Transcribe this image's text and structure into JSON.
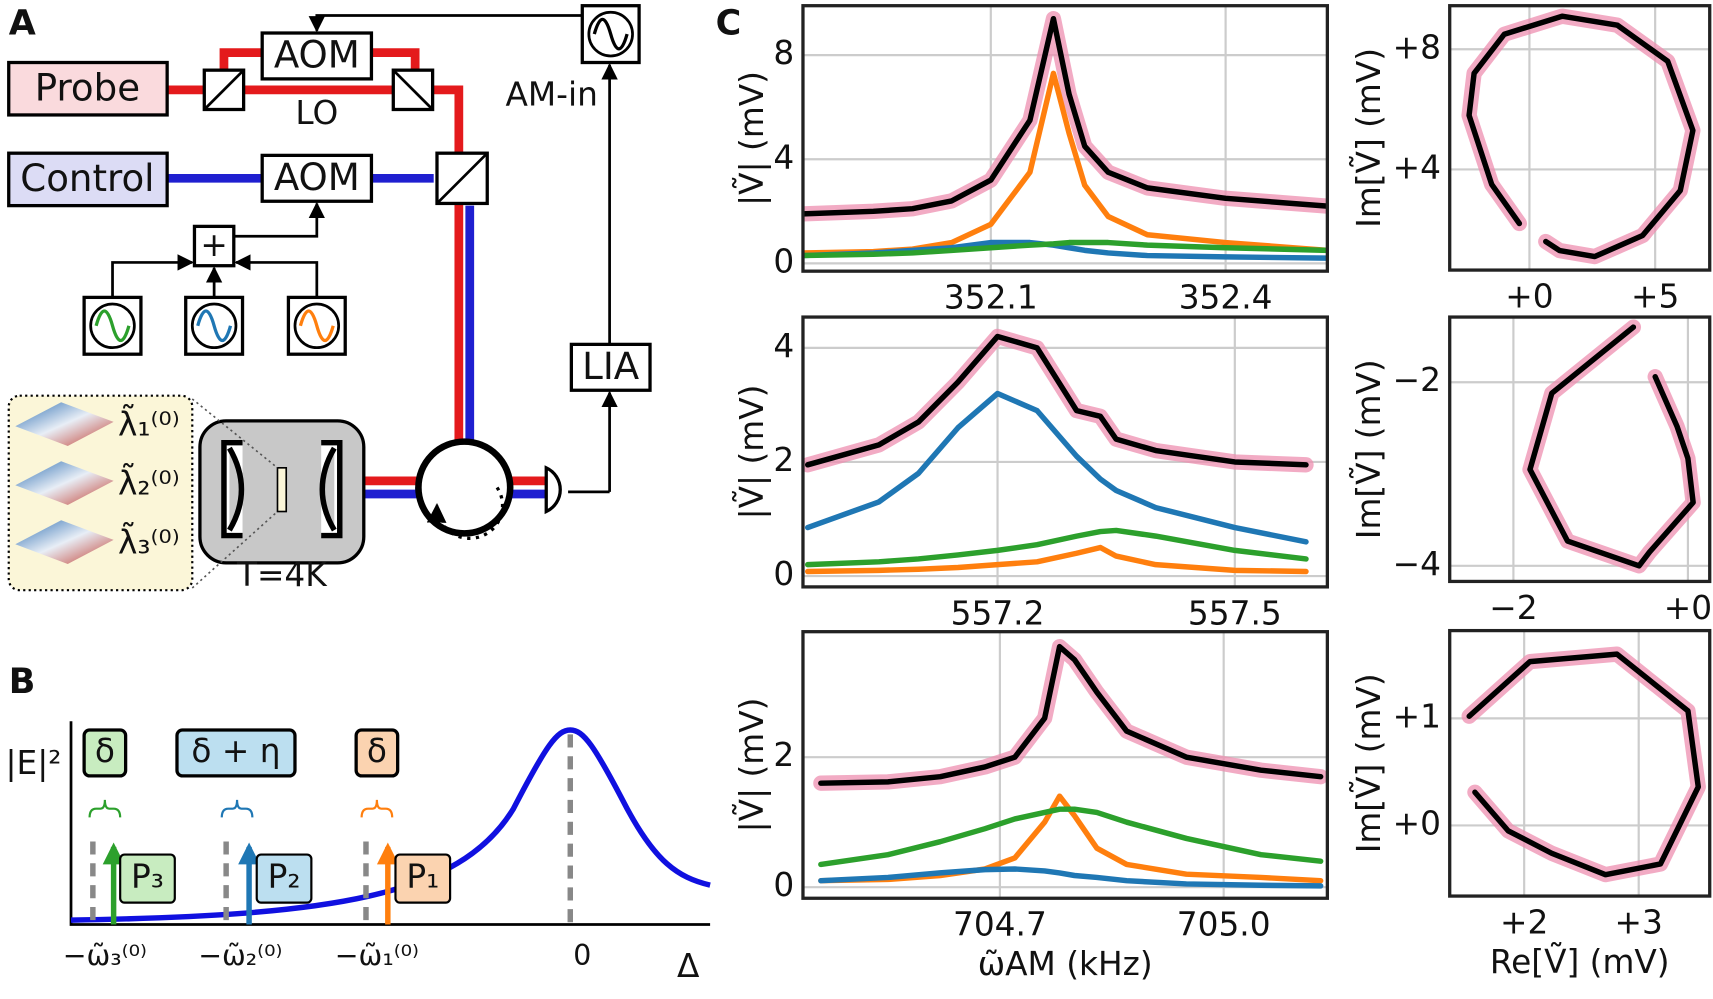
{
  "panel_a": {
    "label": "A",
    "probe": "Probe",
    "control": "Control",
    "aom_top": "AOM",
    "aom_bottom": "AOM",
    "lo": "LO",
    "am_in": "AM-in",
    "plus": "+",
    "lia": "LIA",
    "temperature": "T=4K",
    "modes": [
      "λ̃₁⁽⁰⁾",
      "λ̃₂⁽⁰⁾",
      "λ̃₃⁽⁰⁾"
    ]
  },
  "panel_b": {
    "label": "B",
    "ylabel": "|E|²",
    "xlabel": "Δ",
    "detunings": [
      "δ",
      "δ + η",
      "δ"
    ],
    "powers": [
      "P₃",
      "P₂",
      "P₁"
    ],
    "xtick_labels": [
      "−ω̃₃⁽⁰⁾",
      "−ω̃₂⁽⁰⁾",
      "−ω̃₁⁽⁰⁾",
      "0"
    ]
  },
  "panel_c": {
    "label": "C"
  },
  "chart_data": [
    {
      "type": "line",
      "ylabel": "|Ṽ| (mV)",
      "grid": true,
      "x": [
        351.86,
        351.95,
        352.0,
        352.05,
        352.1,
        352.15,
        352.18,
        352.2,
        352.22,
        352.25,
        352.3,
        352.4,
        352.53
      ],
      "series": [
        {
          "color": "#ee8fb0",
          "values": [
            1.9,
            2.0,
            2.1,
            2.4,
            3.2,
            5.5,
            9.4,
            6.5,
            4.5,
            3.5,
            2.9,
            2.5,
            2.2
          ]
        },
        {
          "color": "#ff7f0e",
          "values": [
            0.4,
            0.45,
            0.55,
            0.8,
            1.5,
            3.5,
            7.3,
            5.0,
            3.0,
            1.8,
            1.1,
            0.8,
            0.5
          ]
        },
        {
          "color": "#1f77b4",
          "values": [
            0.3,
            0.4,
            0.5,
            0.6,
            0.8,
            0.8,
            0.7,
            0.6,
            0.5,
            0.4,
            0.3,
            0.25,
            0.2
          ]
        },
        {
          "color": "#2ca02c",
          "values": [
            0.3,
            0.35,
            0.4,
            0.5,
            0.6,
            0.7,
            0.75,
            0.8,
            0.8,
            0.8,
            0.7,
            0.6,
            0.5
          ]
        },
        {
          "color": "#000000",
          "values": [
            1.9,
            2.0,
            2.1,
            2.4,
            3.2,
            5.5,
            9.4,
            6.5,
            4.5,
            3.5,
            2.9,
            2.5,
            2.2
          ]
        }
      ],
      "xlim": [
        351.86,
        352.53
      ],
      "ylim": [
        -0.3,
        9.9
      ],
      "xticks": [
        352.1,
        352.4
      ],
      "yticks": [
        0,
        4,
        8
      ]
    },
    {
      "type": "line",
      "ylabel": "|Ṽ| (mV)",
      "grid": true,
      "x": [
        556.96,
        557.05,
        557.1,
        557.15,
        557.2,
        557.25,
        557.3,
        557.33,
        557.35,
        557.4,
        557.5,
        557.59
      ],
      "series": [
        {
          "color": "#ee8fb0",
          "values": [
            1.95,
            2.3,
            2.7,
            3.4,
            4.2,
            4.0,
            2.9,
            2.8,
            2.4,
            2.2,
            2.0,
            1.95
          ]
        },
        {
          "color": "#1f77b4",
          "values": [
            0.85,
            1.3,
            1.8,
            2.6,
            3.2,
            2.9,
            2.1,
            1.7,
            1.5,
            1.2,
            0.85,
            0.6
          ]
        },
        {
          "color": "#2ca02c",
          "values": [
            0.2,
            0.25,
            0.3,
            0.37,
            0.45,
            0.55,
            0.7,
            0.78,
            0.8,
            0.7,
            0.45,
            0.3
          ]
        },
        {
          "color": "#ff7f0e",
          "values": [
            0.08,
            0.1,
            0.12,
            0.15,
            0.2,
            0.25,
            0.4,
            0.5,
            0.35,
            0.2,
            0.1,
            0.08
          ]
        },
        {
          "color": "#000000",
          "values": [
            1.95,
            2.3,
            2.7,
            3.4,
            4.2,
            4.0,
            2.9,
            2.8,
            2.4,
            2.2,
            2.0,
            1.95
          ]
        }
      ],
      "xlim": [
        556.954,
        557.617
      ],
      "ylim": [
        -0.19,
        4.54
      ],
      "xticks": [
        557.2,
        557.5
      ],
      "yticks": [
        0,
        2,
        4
      ]
    },
    {
      "type": "line",
      "ylabel": "|Ṽ| (mV)",
      "xlabel": "ω̃AM (kHz)",
      "grid": true,
      "x": [
        704.46,
        704.55,
        704.62,
        704.68,
        704.72,
        704.76,
        704.78,
        704.8,
        704.83,
        704.87,
        704.95,
        705.05,
        705.13
      ],
      "series": [
        {
          "color": "#ee8fb0",
          "values": [
            1.6,
            1.62,
            1.7,
            1.85,
            2.0,
            2.6,
            3.7,
            3.5,
            3.0,
            2.4,
            2.0,
            1.8,
            1.7
          ]
        },
        {
          "color": "#ff7f0e",
          "values": [
            0.1,
            0.12,
            0.18,
            0.28,
            0.45,
            1.0,
            1.4,
            1.1,
            0.6,
            0.35,
            0.2,
            0.15,
            0.1
          ]
        },
        {
          "color": "#2ca02c",
          "values": [
            0.35,
            0.5,
            0.7,
            0.9,
            1.05,
            1.15,
            1.2,
            1.2,
            1.15,
            1.0,
            0.75,
            0.5,
            0.4
          ]
        },
        {
          "color": "#1f77b4",
          "values": [
            0.1,
            0.15,
            0.22,
            0.27,
            0.28,
            0.25,
            0.22,
            0.18,
            0.15,
            0.1,
            0.05,
            0.03,
            0.02
          ]
        },
        {
          "color": "#000000",
          "values": [
            1.6,
            1.62,
            1.7,
            1.85,
            2.0,
            2.6,
            3.7,
            3.5,
            3.0,
            2.4,
            2.0,
            1.8,
            1.7
          ]
        }
      ],
      "xlim": [
        704.436,
        705.139
      ],
      "ylim": [
        -0.17,
        3.93
      ],
      "xticks": [
        704.7,
        {
          "value": 705,
          "label": "705.0"
        }
      ],
      "yticks": [
        0,
        2
      ]
    },
    {
      "type": "line",
      "ylabel": "Im[Ṽ] (mV)",
      "grid": true,
      "x": [
        -0.4,
        -1.5,
        -2.4,
        -2.2,
        -1.0,
        1.3,
        3.5,
        5.5,
        6.5,
        6.0,
        4.5,
        2.6,
        1.2,
        0.65
      ],
      "series": [
        {
          "color": "#ee8fb0",
          "values": [
            2.2,
            3.5,
            5.8,
            7.2,
            8.5,
            9.1,
            8.8,
            7.6,
            5.3,
            3.3,
            1.8,
            1.1,
            1.3,
            1.6
          ]
        },
        {
          "color": "#000000",
          "values": [
            2.2,
            3.5,
            5.8,
            7.2,
            8.5,
            9.1,
            8.8,
            7.6,
            5.3,
            3.3,
            1.8,
            1.1,
            1.3,
            1.6
          ]
        }
      ],
      "xlim": [
        -3.17,
        7.17
      ],
      "ylim": [
        0.65,
        9.45
      ],
      "xticks": [
        {
          "value": 0,
          "label": "+0"
        },
        {
          "value": 5,
          "label": "+5"
        }
      ],
      "yticks": [
        {
          "value": 4,
          "label": "+4"
        },
        {
          "value": 8,
          "label": "+8"
        }
      ]
    },
    {
      "type": "line",
      "ylabel": "Im[Ṽ] (mV)",
      "grid": true,
      "x": [
        -0.625,
        -1.56,
        -1.81,
        -1.38,
        -0.56,
        -0.44,
        0.06,
        0,
        -0.125,
        -0.375
      ],
      "series": [
        {
          "color": "#ee8fb0",
          "values": [
            -1.4,
            -2.12,
            -2.95,
            -3.73,
            -4.0,
            -3.85,
            -3.31,
            -2.83,
            -2.48,
            -1.94
          ]
        },
        {
          "color": "#000000",
          "values": [
            -1.4,
            -2.12,
            -2.95,
            -3.73,
            -4.0,
            -3.85,
            -3.31,
            -2.83,
            -2.48,
            -1.94
          ]
        }
      ],
      "xlim": [
        -2.73,
        0.25
      ],
      "ylim": [
        -4.17,
        -1.29
      ],
      "xticks": [
        {
          "value": -2,
          "label": "−2"
        },
        {
          "value": 0,
          "label": "+0"
        }
      ],
      "yticks": [
        {
          "value": -2,
          "label": "−2"
        },
        {
          "value": -4,
          "label": "−4"
        }
      ]
    },
    {
      "type": "line",
      "ylabel": "Im[Ṽ] (mV)",
      "xlabel": "Re[Ṽ] (mV)",
      "grid": true,
      "x": [
        1.52,
        2.05,
        2.81,
        3.43,
        3.52,
        3.19,
        2.71,
        2.24,
        1.86,
        1.57
      ],
      "series": [
        {
          "color": "#ee8fb0",
          "values": [
            1.02,
            1.53,
            1.6,
            1.07,
            0.36,
            -0.36,
            -0.46,
            -0.26,
            -0.05,
            0.31
          ]
        },
        {
          "color": "#000000",
          "values": [
            1.02,
            1.53,
            1.6,
            1.07,
            0.36,
            -0.36,
            -0.46,
            -0.26,
            -0.05,
            0.31
          ]
        }
      ],
      "xlim": [
        1.35,
        3.62
      ],
      "ylim": [
        -0.66,
        1.82
      ],
      "xticks": [
        {
          "value": 2,
          "label": "+2"
        },
        {
          "value": 3,
          "label": "+3"
        }
      ],
      "yticks": [
        {
          "value": 0,
          "label": "+0"
        },
        {
          "value": 1,
          "label": "+1"
        }
      ]
    }
  ]
}
